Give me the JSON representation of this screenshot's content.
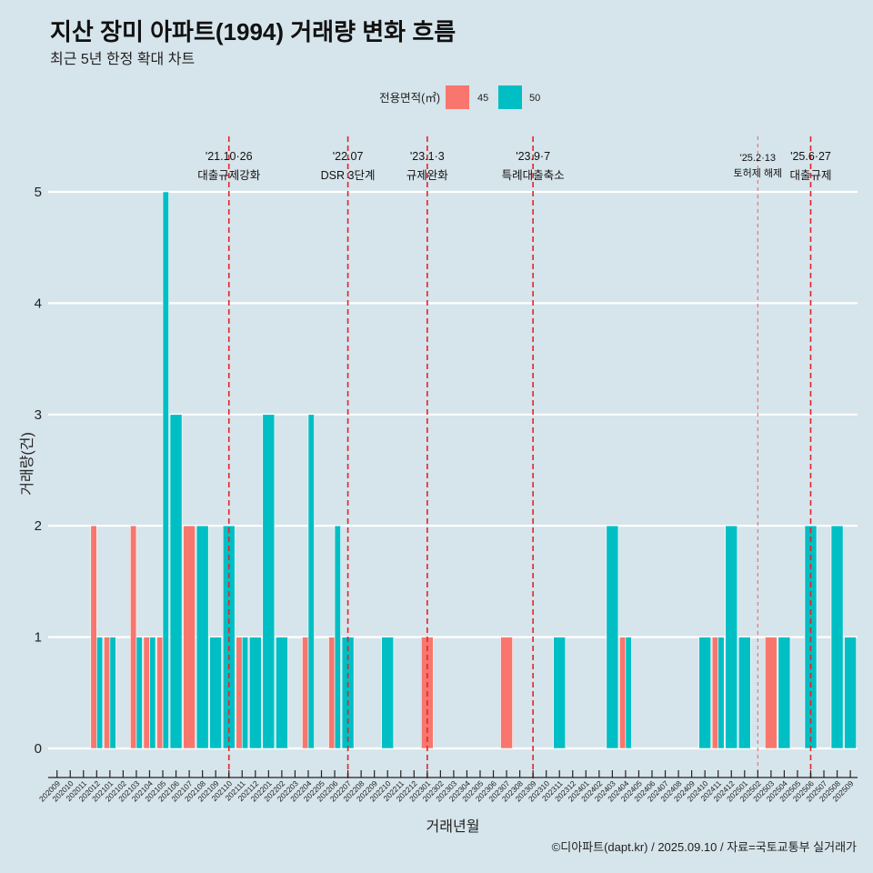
{
  "header": {
    "title": "지산 장미 아파트(1994) 거래량 변화 흐름",
    "subtitle": "최근 5년 한정 확대 차트"
  },
  "legend": {
    "title": "전용면적(㎡)",
    "items": [
      {
        "label": "45",
        "color": "#F8766D"
      },
      {
        "label": "50",
        "color": "#00BFC4"
      }
    ]
  },
  "caption": "©디아파트(dapt.kr) / 2025.09.10 / 자료=국토교통부 실거래가",
  "chart_data": {
    "type": "bar",
    "title": "지산 장미 아파트(1994) 거래량 변화 흐름",
    "subtitle": "최근 5년 한정 확대 차트",
    "xlabel": "거래년월",
    "ylabel": "거래량(건)",
    "ylim": [
      0,
      5
    ],
    "yticks": [
      "0",
      "1",
      "2",
      "3",
      "4",
      "5"
    ],
    "grid": true,
    "legend_position": "top",
    "bar_mode": "dodge",
    "categories": [
      "202009",
      "202010",
      "202011",
      "202012",
      "202101",
      "202102",
      "202103",
      "202104",
      "202105",
      "202106",
      "202107",
      "202108",
      "202109",
      "202110",
      "202111",
      "202112",
      "202201",
      "202202",
      "202203",
      "202204",
      "202205",
      "202206",
      "202207",
      "202208",
      "202209",
      "202210",
      "202211",
      "202212",
      "202301",
      "202302",
      "202303",
      "202304",
      "202305",
      "202306",
      "202307",
      "202308",
      "202309",
      "202310",
      "202311",
      "202312",
      "202401",
      "202402",
      "202403",
      "202404",
      "202405",
      "202406",
      "202407",
      "202408",
      "202409",
      "202410",
      "202411",
      "202412",
      "202501",
      "202502",
      "202503",
      "202504",
      "202505",
      "202506",
      "202507",
      "202508",
      "202509"
    ],
    "series": [
      {
        "name": "45",
        "color": "#F8766D",
        "values": [
          0,
          0,
          0,
          2,
          1,
          0,
          2,
          1,
          1,
          0,
          2,
          0,
          0,
          0,
          1,
          0,
          0,
          0,
          0,
          1,
          0,
          1,
          0,
          0,
          0,
          0,
          0,
          0,
          1,
          0,
          0,
          0,
          0,
          0,
          1,
          0,
          0,
          0,
          0,
          0,
          0,
          0,
          0,
          1,
          0,
          0,
          0,
          0,
          0,
          0,
          1,
          0,
          0,
          0,
          1,
          0,
          0,
          0,
          0,
          0,
          0
        ]
      },
      {
        "name": "50",
        "color": "#00BFC4",
        "values": [
          0,
          0,
          0,
          1,
          1,
          0,
          1,
          1,
          5,
          3,
          0,
          2,
          1,
          2,
          1,
          1,
          3,
          1,
          0,
          3,
          0,
          2,
          1,
          0,
          0,
          1,
          0,
          0,
          0,
          0,
          0,
          0,
          0,
          0,
          0,
          0,
          0,
          0,
          1,
          0,
          0,
          0,
          2,
          1,
          0,
          0,
          0,
          0,
          0,
          1,
          1,
          2,
          1,
          0,
          0,
          1,
          0,
          2,
          0,
          2,
          1
        ]
      }
    ],
    "annotations": [
      {
        "x": "202110",
        "date": "'21.10·26",
        "label": "대출규제강화",
        "style": "strong"
      },
      {
        "x": "202207",
        "date": "'22.07",
        "label": "DSR 3단계",
        "style": "strong"
      },
      {
        "x": "202301",
        "date": "'23.1·3",
        "label": "규제완화",
        "style": "strong"
      },
      {
        "x": "202309",
        "date": "'23.9·7",
        "label": "특례대출축소",
        "style": "strong"
      },
      {
        "x": "202502",
        "date": "'25.2·13",
        "label": "토허제 해제",
        "style": "light"
      },
      {
        "x": "202506",
        "date": "'25.6·27",
        "label": "대출규제",
        "style": "strong"
      }
    ]
  }
}
